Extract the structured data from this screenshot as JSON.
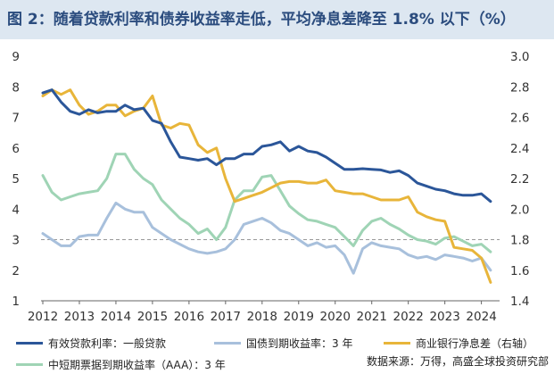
{
  "title": "图 2：随着贷款利率和债券收益率走低，平均净息差降至 1.8% 以下（%）",
  "source": "数据来源：万得，高盛全球投资研究部",
  "colors": {
    "loan": "#2b5699",
    "gov": "#a8c0dc",
    "nim": "#e8b53a",
    "mtn": "#9fd4b5",
    "dashed": "#999999",
    "axis": "#666666"
  },
  "chart_data": {
    "type": "line",
    "title": "随着贷款利率和债券收益率走低，平均净息差降至 1.8% 以下（%）",
    "xlim": [
      2012,
      2024.4
    ],
    "ylim": [
      1,
      9
    ],
    "y2lim": [
      1.4,
      3.0
    ],
    "reference_line": {
      "axis": "left",
      "value": 3,
      "style": "dashed"
    },
    "x_ticks": [
      "2012",
      "2013",
      "2014",
      "2015",
      "2016",
      "2017",
      "2018",
      "2019",
      "2020",
      "2021",
      "2022",
      "2023",
      "2024"
    ],
    "y_ticks": [
      "1",
      "2",
      "3",
      "4",
      "5",
      "6",
      "7",
      "8",
      "9"
    ],
    "y2_ticks": [
      "1.4",
      "1.6",
      "1.8",
      "2.0",
      "2.2",
      "2.4",
      "2.6",
      "2.8",
      "3.0"
    ],
    "series": [
      {
        "name": "有效贷款利率：一般贷款",
        "axis": "left",
        "color_key": "loan",
        "x": [
          2012.0,
          2012.25,
          2012.5,
          2012.75,
          2013.0,
          2013.25,
          2013.5,
          2013.75,
          2014.0,
          2014.25,
          2014.5,
          2014.75,
          2015.0,
          2015.25,
          2015.5,
          2015.75,
          2016.0,
          2016.25,
          2016.5,
          2016.75,
          2017.0,
          2017.25,
          2017.5,
          2017.75,
          2018.0,
          2018.25,
          2018.5,
          2018.75,
          2019.0,
          2019.25,
          2019.5,
          2019.75,
          2020.0,
          2020.25,
          2020.5,
          2020.75,
          2021.0,
          2021.25,
          2021.5,
          2021.75,
          2022.0,
          2022.25,
          2022.5,
          2022.75,
          2023.0,
          2023.25,
          2023.5,
          2023.75,
          2024.0,
          2024.25
        ],
        "y": [
          7.8,
          7.9,
          7.5,
          7.2,
          7.1,
          7.25,
          7.15,
          7.2,
          7.2,
          7.4,
          7.25,
          7.3,
          6.9,
          6.8,
          6.2,
          5.7,
          5.65,
          5.6,
          5.65,
          5.45,
          5.65,
          5.65,
          5.8,
          5.8,
          6.05,
          6.1,
          6.2,
          5.9,
          6.05,
          5.9,
          5.85,
          5.7,
          5.5,
          5.3,
          5.3,
          5.32,
          5.3,
          5.28,
          5.2,
          5.25,
          5.1,
          4.85,
          4.75,
          4.65,
          4.6,
          4.5,
          4.45,
          4.45,
          4.5,
          4.25
        ]
      },
      {
        "name": "国债到期收益率：3 年",
        "axis": "left",
        "color_key": "gov",
        "x": [
          2012.0,
          2012.25,
          2012.5,
          2012.75,
          2013.0,
          2013.25,
          2013.5,
          2013.75,
          2014.0,
          2014.25,
          2014.5,
          2014.75,
          2015.0,
          2015.25,
          2015.5,
          2015.75,
          2016.0,
          2016.25,
          2016.5,
          2016.75,
          2017.0,
          2017.25,
          2017.5,
          2017.75,
          2018.0,
          2018.25,
          2018.5,
          2018.75,
          2019.0,
          2019.25,
          2019.5,
          2019.75,
          2020.0,
          2020.25,
          2020.5,
          2020.75,
          2021.0,
          2021.25,
          2021.5,
          2021.75,
          2022.0,
          2022.25,
          2022.5,
          2022.75,
          2023.0,
          2023.25,
          2023.5,
          2023.75,
          2024.0,
          2024.25
        ],
        "y": [
          3.2,
          3.0,
          2.8,
          2.8,
          3.1,
          3.15,
          3.15,
          3.7,
          4.2,
          4.0,
          3.9,
          3.9,
          3.4,
          3.2,
          3.0,
          2.85,
          2.7,
          2.6,
          2.55,
          2.6,
          2.7,
          3.0,
          3.5,
          3.6,
          3.7,
          3.55,
          3.3,
          3.2,
          3.0,
          2.8,
          2.9,
          2.75,
          2.8,
          2.5,
          1.9,
          2.7,
          2.9,
          2.8,
          2.75,
          2.7,
          2.5,
          2.4,
          2.45,
          2.35,
          2.5,
          2.45,
          2.4,
          2.3,
          2.4,
          2.0
        ]
      },
      {
        "name": "中短期票据到期收益率（AAA）：3 年",
        "axis": "left",
        "color_key": "mtn",
        "x": [
          2012.0,
          2012.25,
          2012.5,
          2012.75,
          2013.0,
          2013.25,
          2013.5,
          2013.75,
          2014.0,
          2014.25,
          2014.5,
          2014.75,
          2015.0,
          2015.25,
          2015.5,
          2015.75,
          2016.0,
          2016.25,
          2016.5,
          2016.75,
          2017.0,
          2017.25,
          2017.5,
          2017.75,
          2018.0,
          2018.25,
          2018.5,
          2018.75,
          2019.0,
          2019.25,
          2019.5,
          2019.75,
          2020.0,
          2020.25,
          2020.5,
          2020.75,
          2021.0,
          2021.25,
          2021.5,
          2021.75,
          2022.0,
          2022.25,
          2022.5,
          2022.75,
          2023.0,
          2023.25,
          2023.5,
          2023.75,
          2024.0,
          2024.25
        ],
        "y": [
          5.1,
          4.55,
          4.3,
          4.4,
          4.5,
          4.55,
          4.6,
          5.0,
          5.8,
          5.8,
          5.3,
          5.0,
          4.8,
          4.3,
          4.0,
          3.7,
          3.5,
          3.2,
          3.35,
          3.0,
          3.4,
          4.3,
          4.6,
          4.6,
          5.05,
          5.1,
          4.6,
          4.1,
          3.85,
          3.65,
          3.6,
          3.5,
          3.4,
          3.1,
          2.8,
          3.3,
          3.6,
          3.7,
          3.5,
          3.35,
          3.15,
          3.0,
          2.95,
          2.85,
          3.05,
          3.1,
          2.95,
          2.8,
          2.85,
          2.6
        ]
      },
      {
        "name": "商业银行净息差（右轴）",
        "axis": "right",
        "color_key": "nim",
        "x": [
          2012.0,
          2012.25,
          2012.5,
          2012.75,
          2013.0,
          2013.25,
          2013.5,
          2013.75,
          2014.0,
          2014.25,
          2014.5,
          2014.75,
          2015.0,
          2015.25,
          2015.5,
          2015.75,
          2016.0,
          2016.25,
          2016.5,
          2016.75,
          2017.0,
          2017.25,
          2017.5,
          2017.75,
          2018.0,
          2018.25,
          2018.5,
          2018.75,
          2019.0,
          2019.25,
          2019.5,
          2019.75,
          2020.0,
          2020.25,
          2020.5,
          2020.75,
          2021.0,
          2021.25,
          2021.5,
          2021.75,
          2022.0,
          2022.25,
          2022.5,
          2022.75,
          2023.0,
          2023.25,
          2023.5,
          2023.75,
          2024.0,
          2024.25
        ],
        "y": [
          2.74,
          2.78,
          2.75,
          2.78,
          2.68,
          2.62,
          2.64,
          2.68,
          2.68,
          2.61,
          2.64,
          2.66,
          2.74,
          2.55,
          2.53,
          2.56,
          2.55,
          2.42,
          2.37,
          2.4,
          2.2,
          2.05,
          2.07,
          2.09,
          2.11,
          2.14,
          2.17,
          2.18,
          2.18,
          2.17,
          2.17,
          2.19,
          2.12,
          2.11,
          2.1,
          2.1,
          2.08,
          2.06,
          2.06,
          2.06,
          2.08,
          1.98,
          1.95,
          1.93,
          1.92,
          1.75,
          1.74,
          1.73,
          1.68,
          1.52
        ]
      }
    ]
  },
  "legend": [
    {
      "label": "有效贷款利率：一般贷款",
      "color_key": "loan"
    },
    {
      "label": "国债到期收益率：3 年",
      "color_key": "gov"
    },
    {
      "label": "商业银行净息差（右轴）",
      "color_key": "nim"
    },
    {
      "label": "中短期票据到期收益率（AAA）：3 年",
      "color_key": "mtn"
    }
  ]
}
